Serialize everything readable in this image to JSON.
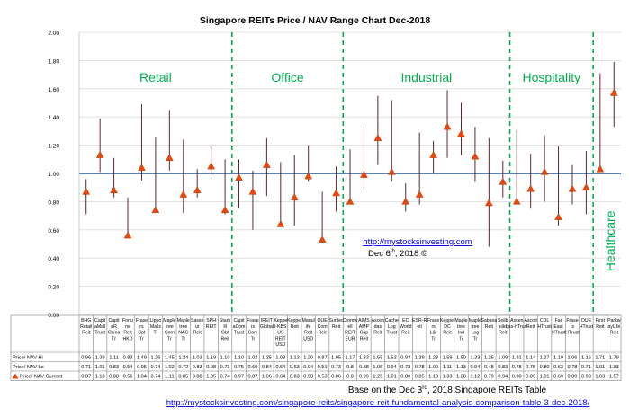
{
  "chart_data": {
    "type": "line",
    "title": "Singapore REITs Price / NAV Range Chart Dec-2018",
    "ylim": [
      0,
      2
    ],
    "yticks": [
      "0.00",
      "0.20",
      "0.40",
      "0.60",
      "0.80",
      "1.00",
      "1.20",
      "1.40",
      "1.60",
      "1.80",
      "2.00"
    ],
    "reference_line": 1.0,
    "categories": [
      "BHG Retail Reit",
      "CapitaMall Trust",
      "CapitaR China Tr",
      "Fortune Reit HKD",
      "Frasers Cpt Tr",
      "Lippo Malls Tr",
      "Mapletree Com Tr",
      "Mapletree NAC Tr",
      "Sasseur Reit",
      "SPH REIT",
      "Starhill Gbl Reit",
      "CapitaCom Trust",
      "Frasers Com Tr",
      "IREIT Global",
      "Keppel-KBS US REIT USD",
      "Keppel Reit",
      "Manulife Reit USD",
      "OUE Com Reit",
      "Suntec Reit",
      "Cromwell REIT EUR",
      "AIMS AMP Cap Reit",
      "Ascendas Reit",
      "Cache Log Trust",
      "EC World Reit",
      "ESR-Reit",
      "Frasers L&I Tr",
      "Keppel DC Reit",
      "Mapletree Ind Tr",
      "Mapletree Log Tr",
      "Sabana Reit",
      "Soilbuild Reit",
      "Ascendas-hTrust",
      "Ascott Reit",
      "CDL HTrust",
      "Far East HTrust",
      "Frasers HTrust",
      "OUE HTrust",
      "First Reit",
      "ParkwayLife Reit"
    ],
    "series": [
      {
        "name": "Price/ NAV Hi",
        "values": [
          0.96,
          1.39,
          1.11,
          0.83,
          1.49,
          1.26,
          1.45,
          1.24,
          1.03,
          1.19,
          1.1,
          1.1,
          1.02,
          1.25,
          1.08,
          1.13,
          1.2,
          0.87,
          1.05,
          1.17,
          1.33,
          1.55,
          1.52,
          0.93,
          1.29,
          1.23,
          1.59,
          1.5,
          1.33,
          1.25,
          1.09,
          1.31,
          1.14,
          1.27,
          1.19,
          1.06,
          1.16,
          1.71,
          1.79
        ]
      },
      {
        "name": "Price/ NAV Lo",
        "values": [
          0.71,
          1.01,
          0.83,
          0.54,
          0.95,
          0.74,
          1.02,
          0.72,
          0.83,
          0.98,
          0.71,
          0.75,
          0.6,
          0.84,
          0.64,
          0.63,
          0.94,
          0.51,
          0.73,
          0.8,
          0.88,
          1.06,
          0.94,
          0.73,
          0.78,
          1.0,
          1.11,
          1.13,
          0.94,
          0.48,
          0.83,
          0.78,
          0.75,
          0.8,
          0.63,
          0.78,
          0.71,
          1.01,
          1.33
        ]
      },
      {
        "name": "Price/ NAV Current",
        "values": [
          0.87,
          1.13,
          0.88,
          0.56,
          1.04,
          0.74,
          1.11,
          0.85,
          0.88,
          1.05,
          0.74,
          0.97,
          0.87,
          1.06,
          0.64,
          0.83,
          0.98,
          0.53,
          0.86,
          0.8,
          0.99,
          1.25,
          1.01,
          0.8,
          0.85,
          1.13,
          1.33,
          1.28,
          1.12,
          0.79,
          0.94,
          0.8,
          0.89,
          1.01,
          0.69,
          0.89,
          0.9,
          1.03,
          1.57
        ]
      }
    ],
    "table_headers": [
      "Price/ NAV Hi",
      "Price/ NAV Lo",
      "Price/ NAV Current"
    ],
    "table_values": [
      [
        "0.96",
        "1.39",
        "1.11",
        "0.83",
        "1.49",
        "1.26",
        "1.45",
        "1.24",
        "1.03",
        "1.19",
        "1.10",
        "1.10",
        "1.02",
        "1.25",
        "1.08",
        "1.13",
        "1.20",
        "0.87",
        "1.05",
        "1.17",
        "1.33",
        "1.55",
        "1.52",
        "0.93",
        "1.29",
        "1.23",
        "1.59",
        "1.50",
        "1.33",
        "1.25",
        "1.09",
        "1.31",
        "1.14",
        "1.27",
        "1.19",
        "1.06",
        "1.16",
        "1.71",
        "1.79"
      ],
      [
        "0.71",
        "1.01",
        "0.83",
        "0.54",
        "0.95",
        "0.74",
        "1.02",
        "0.72",
        "0.83",
        "0.98",
        "0.71",
        "0.75",
        "0.60",
        "0.84",
        "0.64",
        "0.63",
        "0.94",
        "0.51",
        "0.73",
        "0.8",
        "0.88",
        "1.06",
        "0.94",
        "0.73",
        "0.78",
        "1.00",
        "1.11",
        "1.13",
        "0.94",
        "0.48",
        "0.83",
        "0.78",
        "0.75",
        "0.80",
        "0.63",
        "0.78",
        "0.71",
        "1.01",
        "1.33"
      ],
      [
        "0.87",
        "1.13",
        "0.88",
        "0.56",
        "1.04",
        "0.74",
        "1.11",
        "0.85",
        "0.88",
        "1.05",
        "0.74",
        "0.97",
        "0.87",
        "1.06",
        "0.64",
        "0.83",
        "0.98",
        "0.53",
        "0.86",
        "0.8",
        "0.99",
        "1.25",
        "1.01",
        "0.80",
        "0.85",
        "1.13",
        "1.33",
        "1.28",
        "1.12",
        "0.79",
        "0.94",
        "0.80",
        "0.89",
        "1.01",
        "0.69",
        "0.89",
        "0.90",
        "1.03",
        "1.57"
      ]
    ],
    "sectors": [
      {
        "label": "Retail",
        "start": 0,
        "end": 10
      },
      {
        "label": "Office",
        "start": 11,
        "end": 18
      },
      {
        "label": "Industrial",
        "start": 19,
        "end": 30
      },
      {
        "label": "Hospitality",
        "start": 31,
        "end": 36
      },
      {
        "label": "Healthcare",
        "start": 37,
        "end": 38
      }
    ],
    "colors": {
      "range": "#c0504d",
      "marker": "#e8480c",
      "sector": "#00b050",
      "ref_line": "#4f81bd",
      "grid": "#d9d9d9"
    },
    "grid": true,
    "legend": "bottom-left table"
  },
  "annotation": {
    "site": "http://mystocksinvesting.com",
    "date_prefix": "Dec 6",
    "date_suffix_sup": "th",
    "date_rest": ", 2018 ©"
  },
  "footer": {
    "line1_prefix": "Base on the Dec 3",
    "line1_sup": "rd",
    "line1_rest": ", 2018 Singapore REITs Table",
    "link": "http://mystocksinvesting.com/singapore-reits/singapore-reit-fundamental-analysis-comparison-table-3-dec-2018/"
  }
}
